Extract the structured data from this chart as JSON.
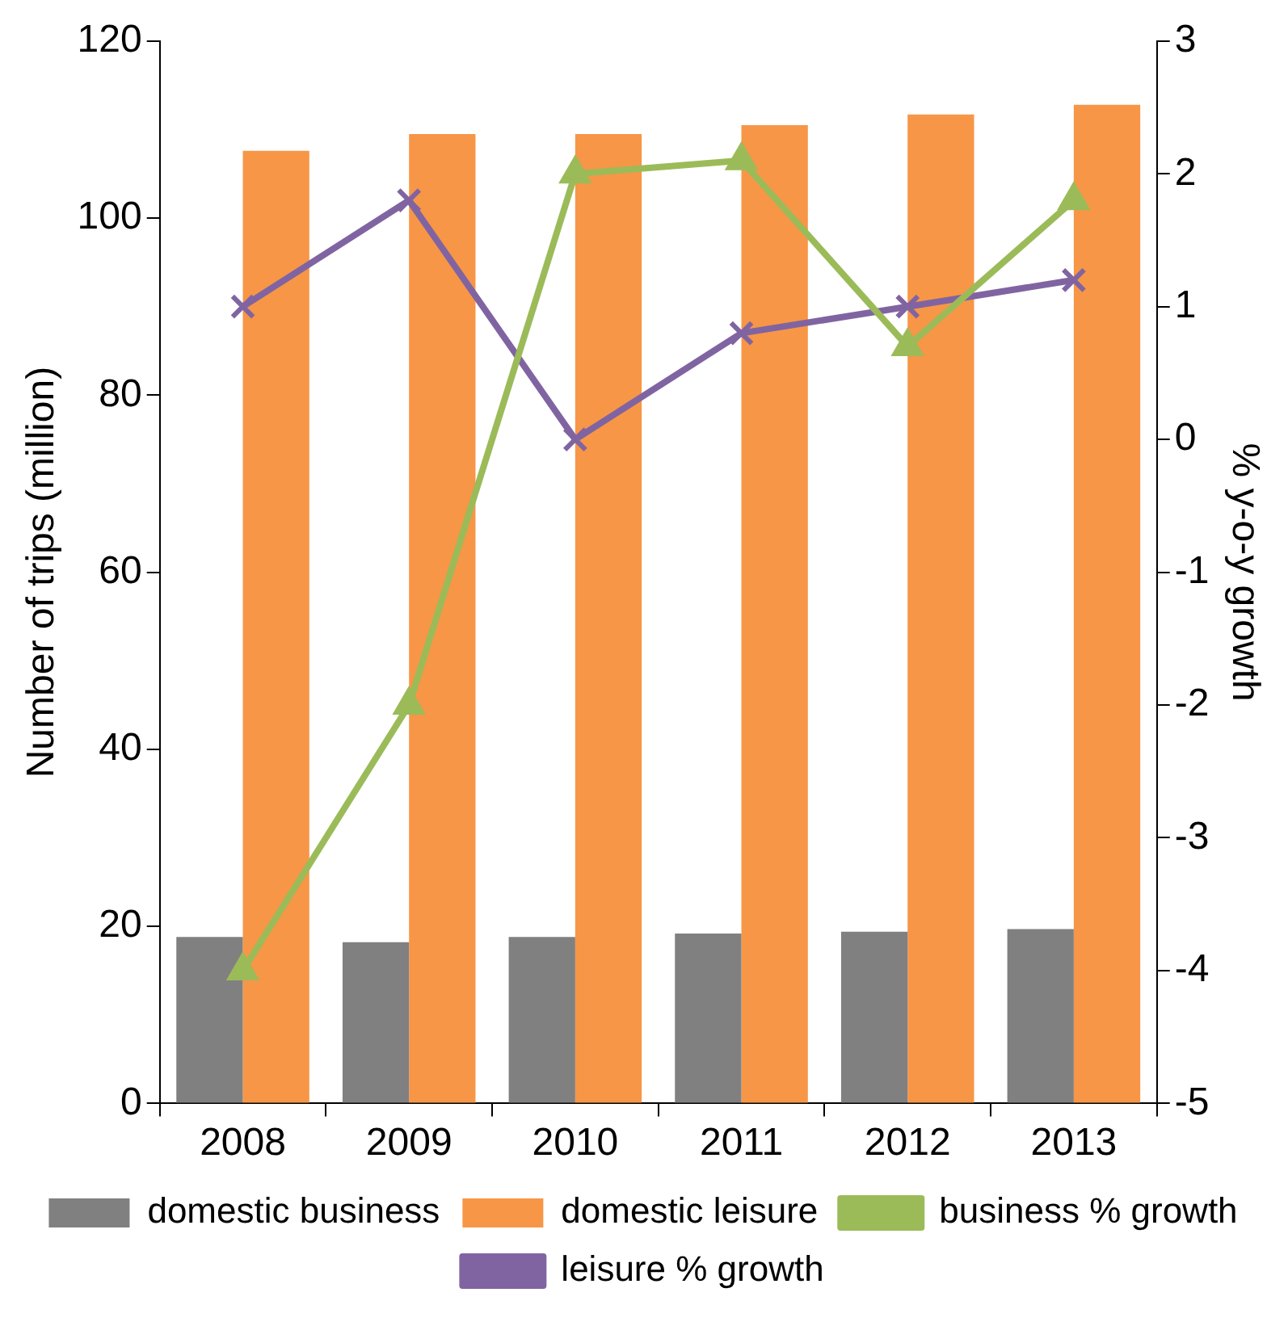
{
  "chart_data": {
    "type": "bar",
    "categories": [
      "2008",
      "2009",
      "2010",
      "2011",
      "2012",
      "2013"
    ],
    "ylabel": "Number of trips (million)",
    "y2label": "% y-o-y growth",
    "ylim": [
      0,
      120
    ],
    "yticks": [
      0,
      20,
      40,
      60,
      80,
      100,
      120
    ],
    "y2lim": [
      -5,
      3
    ],
    "y2ticks": [
      -5,
      -4,
      -3,
      -2,
      -1,
      0,
      1,
      2,
      3
    ],
    "grid": false,
    "legend": "bottom",
    "series": [
      {
        "name": "domestic business",
        "color": "#808080",
        "values": [
          18.8,
          18.2,
          18.8,
          19.2,
          19.4,
          19.7
        ]
      },
      {
        "name": "domestic leisure",
        "color": "#f79646",
        "values": [
          107.6,
          109.5,
          109.5,
          110.5,
          111.7,
          112.8
        ]
      },
      {
        "name": "business % growth",
        "type": "line",
        "axis": "y2",
        "marker": "triangle",
        "color": "#9bbb59",
        "values": [
          -4.0,
          -2.0,
          2.0,
          2.1,
          0.7,
          1.8
        ]
      },
      {
        "name": "leisure % growth",
        "type": "line",
        "axis": "y2",
        "marker": "cross",
        "color": "#8064a2",
        "values": [
          1.0,
          1.8,
          0.0,
          0.8,
          1.0,
          1.2
        ]
      }
    ]
  }
}
